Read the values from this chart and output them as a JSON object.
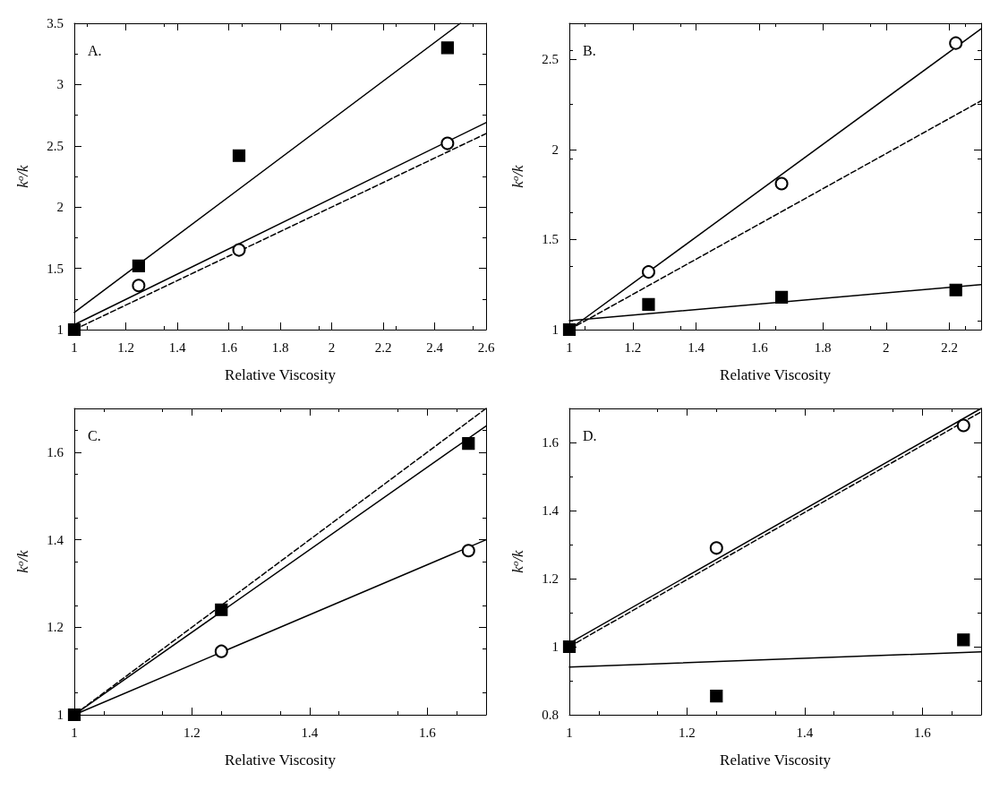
{
  "chart_data": [
    {
      "type": "scatter",
      "xlabel": "Relative Viscosity",
      "ylabel": "k$^{o}$/k",
      "annotations": [
        "A."
      ],
      "xlim": [
        1,
        2.6
      ],
      "xticks": [
        1,
        1.2,
        1.4,
        1.6,
        1.8,
        2,
        2.2,
        2.4,
        2.6
      ],
      "ylim": [
        1,
        3.5
      ],
      "yticks": [
        1,
        1.5,
        2,
        2.5,
        3,
        3.5
      ],
      "series": [
        {
          "type": "line",
          "color": "#000000",
          "line_style": "solid",
          "marker": "none",
          "x": [
            1,
            2.5
          ],
          "values": [
            1.14,
            3.5
          ]
        },
        {
          "type": "line",
          "color": "#000000",
          "line_style": "solid",
          "marker": "none",
          "x": [
            1,
            2.6
          ],
          "values": [
            1.04,
            2.69
          ]
        },
        {
          "type": "line",
          "color": "#000000",
          "line_style": "dashed",
          "marker": "none",
          "x": [
            1,
            2.6
          ],
          "values": [
            1.0,
            2.6
          ]
        },
        {
          "color": "#000000",
          "marker": "circle",
          "x": [
            1.25,
            1.64,
            2.45
          ],
          "values": [
            1.36,
            1.65,
            2.52
          ]
        },
        {
          "color": "#000000",
          "marker": "square",
          "x": [
            1,
            1.25,
            1.64,
            2.45
          ],
          "values": [
            1,
            1.52,
            2.42,
            3.3
          ]
        }
      ]
    },
    {
      "type": "scatter",
      "xlabel": "Relative Viscosity",
      "ylabel": "k$^{o}$/k",
      "annotations": [
        "B."
      ],
      "xlim": [
        1,
        2.3
      ],
      "xticks": [
        1,
        1.2,
        1.4,
        1.6,
        1.8,
        2,
        2.2
      ],
      "ylim": [
        1,
        2.7
      ],
      "yticks": [
        1,
        1.5,
        2,
        2.5
      ],
      "series": [
        {
          "type": "line",
          "color": "#000000",
          "line_style": "solid",
          "marker": "none",
          "x": [
            1,
            2.3
          ],
          "values": [
            1.0,
            2.67
          ]
        },
        {
          "type": "line",
          "color": "#000000",
          "line_style": "dashed",
          "marker": "none",
          "x": [
            1,
            2.3
          ],
          "values": [
            1.0,
            2.27
          ]
        },
        {
          "type": "line",
          "color": "#000000",
          "line_style": "solid",
          "marker": "none",
          "x": [
            1,
            2.3
          ],
          "values": [
            1.05,
            1.25
          ]
        },
        {
          "color": "#000000",
          "marker": "circle",
          "x": [
            1.25,
            1.67,
            2.22
          ],
          "values": [
            1.32,
            1.81,
            2.59
          ]
        },
        {
          "color": "#000000",
          "marker": "square",
          "x": [
            1,
            1.25,
            1.67,
            2.22
          ],
          "values": [
            1,
            1.14,
            1.18,
            1.22
          ]
        }
      ]
    },
    {
      "type": "scatter",
      "xlabel": "Relative Viscosity",
      "ylabel": "k$^{o}$/k",
      "annotations": [
        "C."
      ],
      "xlim": [
        1,
        1.7
      ],
      "xticks": [
        1,
        1.2,
        1.4,
        1.6
      ],
      "ylim": [
        1,
        1.7
      ],
      "yticks": [
        1,
        1.2,
        1.4,
        1.6
      ],
      "series": [
        {
          "type": "line",
          "color": "#000000",
          "line_style": "dashed",
          "marker": "none",
          "x": [
            1,
            1.7
          ],
          "values": [
            1.0,
            1.7
          ]
        },
        {
          "type": "line",
          "color": "#000000",
          "line_style": "solid",
          "marker": "none",
          "x": [
            1,
            1.7
          ],
          "values": [
            1.0,
            1.66
          ]
        },
        {
          "type": "line",
          "color": "#000000",
          "line_style": "solid",
          "marker": "none",
          "x": [
            1,
            1.7
          ],
          "values": [
            1.0,
            1.4
          ]
        },
        {
          "color": "#000000",
          "marker": "circle",
          "x": [
            1.25,
            1.67
          ],
          "values": [
            1.145,
            1.375
          ]
        },
        {
          "color": "#000000",
          "marker": "square",
          "x": [
            1,
            1.25,
            1.67
          ],
          "values": [
            1,
            1.24,
            1.62
          ]
        }
      ]
    },
    {
      "type": "scatter",
      "xlabel": "Relative Viscosity",
      "ylabel": "k$^{o}$/k",
      "annotations": [
        "D."
      ],
      "xlim": [
        1,
        1.7
      ],
      "xticks": [
        1,
        1.2,
        1.4,
        1.6
      ],
      "ylim": [
        0.8,
        1.7
      ],
      "yticks": [
        0.8,
        1,
        1.2,
        1.4,
        1.6
      ],
      "series": [
        {
          "type": "line",
          "color": "#000000",
          "line_style": "solid",
          "marker": "none",
          "x": [
            1,
            1.7
          ],
          "values": [
            1.01,
            1.7
          ]
        },
        {
          "type": "line",
          "color": "#000000",
          "line_style": "dashed",
          "marker": "none",
          "x": [
            1,
            1.7
          ],
          "values": [
            1.0,
            1.69
          ]
        },
        {
          "type": "line",
          "color": "#000000",
          "line_style": "solid",
          "marker": "none",
          "x": [
            1,
            1.7
          ],
          "values": [
            0.94,
            0.985
          ]
        },
        {
          "color": "#000000",
          "marker": "circle",
          "x": [
            1.25,
            1.67
          ],
          "values": [
            1.29,
            1.65
          ]
        },
        {
          "color": "#000000",
          "marker": "square",
          "x": [
            1,
            1.25,
            1.67
          ],
          "values": [
            1,
            0.855,
            1.02
          ]
        }
      ]
    }
  ]
}
